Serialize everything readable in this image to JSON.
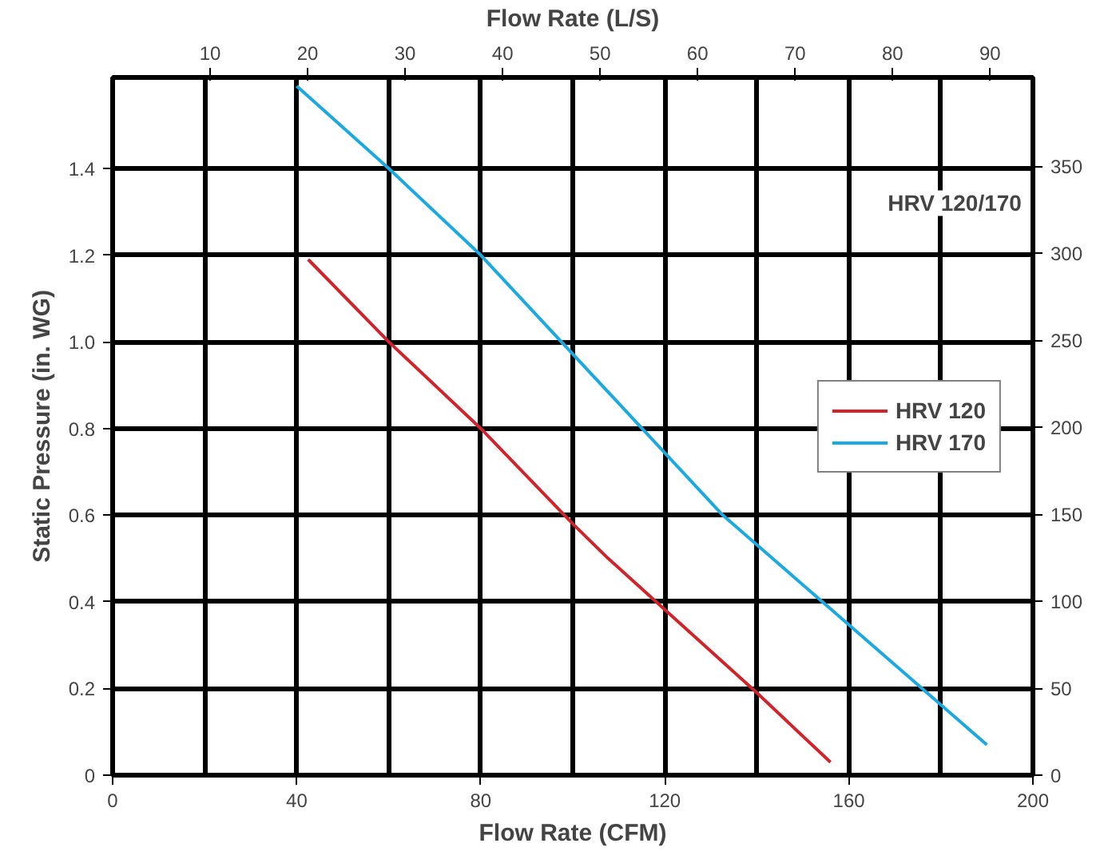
{
  "chart_data": {
    "type": "line",
    "xlabel": "Flow Rate (CFM)",
    "ylabel": "Static Pressure (in. WG)",
    "x2label": "Flow Rate (L/S)",
    "annotations": [
      "HRV 120/170"
    ],
    "series": [
      {
        "name": "HRV 120",
        "color": "#d2232a",
        "x": [
          42.5,
          60,
          80,
          100,
          107.7,
          140,
          156
        ],
        "values": [
          1.19,
          1.0,
          0.8,
          0.58,
          0.5,
          0.19,
          0.03
        ]
      },
      {
        "name": "HRV 170",
        "color": "#1ba9e1",
        "x": [
          40,
          60,
          80,
          132.6,
          190
        ],
        "values": [
          1.59,
          1.4,
          1.2,
          0.6,
          0.07
        ]
      }
    ],
    "xlim": [
      0,
      200
    ],
    "xticks": [
      0,
      40,
      80,
      120,
      160,
      200
    ],
    "ylim": [
      0,
      1.61
    ],
    "yticks": [
      0,
      {
        "value": 0.2,
        "label": "0.2"
      },
      {
        "value": 0.4,
        "label": "0.4"
      },
      {
        "value": 0.6,
        "label": "0.6"
      },
      {
        "value": 0.8,
        "label": "0.8"
      },
      {
        "value": 1,
        "label": "1.0"
      },
      {
        "value": 1.2,
        "label": "1.2"
      },
      {
        "value": 1.4,
        "label": "1.4"
      }
    ],
    "x2lim": [
      0,
      94.4
    ],
    "x2ticks": [
      10,
      20,
      30,
      40,
      50,
      60,
      70,
      80,
      90
    ],
    "y2lim": [
      0,
      401
    ],
    "y2ticks": [
      0,
      50,
      100,
      150,
      200,
      250,
      300,
      350
    ],
    "grid": true,
    "legend": "right",
    "line_style": "solid",
    "marker": "none"
  }
}
